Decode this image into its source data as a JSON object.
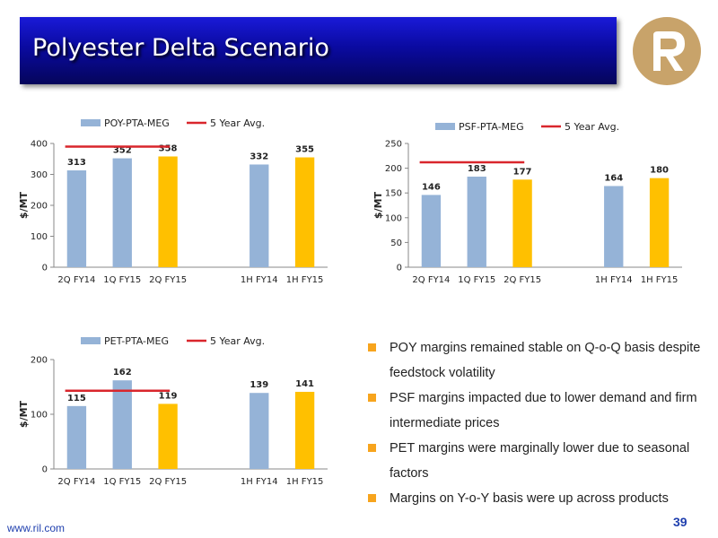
{
  "slide": {
    "title": "Polyester Delta Scenario",
    "footer_url": "www.ril.com",
    "page_number": "39"
  },
  "colors": {
    "bar_blue": "#95b3d7",
    "bar_yellow": "#ffc000",
    "avg_line": "#d9262c",
    "bullet": "#f7a41d",
    "title_bg": "#0a0aa0",
    "logo": "#c8a36a"
  },
  "bullets": [
    "POY margins remained stable on Q-o-Q basis despite feedstock volatility",
    "PSF margins impacted due to lower demand and firm intermediate prices",
    "PET margins were marginally lower due to seasonal factors",
    "Margins on Y-o-Y basis were up across products"
  ],
  "chart_data": [
    {
      "type": "bar",
      "categories": [
        "2Q FY14",
        "1Q FY15",
        "2Q FY15",
        "",
        "1H FY14",
        "1H FY15"
      ],
      "series": [
        {
          "name": "POY-PTA-MEG",
          "values": [
            313,
            352,
            358,
            null,
            332,
            355
          ]
        }
      ],
      "highlight_categories": [
        "2Q FY15",
        "1H FY15"
      ],
      "avg_line": {
        "name": "5 Year Avg.",
        "value": 390,
        "from": "2Q FY14",
        "to": "2Q FY15"
      },
      "ylabel": "$/MT",
      "ylim": [
        0,
        400
      ],
      "yticks": [
        0,
        100,
        200,
        300,
        400
      ],
      "legend": "top",
      "grid": false
    },
    {
      "type": "bar",
      "categories": [
        "2Q FY14",
        "1Q FY15",
        "2Q FY15",
        "",
        "1H FY14",
        "1H FY15"
      ],
      "series": [
        {
          "name": "PSF-PTA-MEG",
          "values": [
            146,
            183,
            177,
            null,
            164,
            180
          ]
        }
      ],
      "highlight_categories": [
        "2Q FY15",
        "1H FY15"
      ],
      "avg_line": {
        "name": "5 Year Avg.",
        "value": 212,
        "from": "2Q FY14",
        "to": "2Q FY15"
      },
      "ylabel": "$/MT",
      "ylim": [
        0,
        250
      ],
      "yticks": [
        0,
        50,
        100,
        150,
        200,
        250
      ],
      "legend": "top",
      "grid": false
    },
    {
      "type": "bar",
      "categories": [
        "2Q FY14",
        "1Q FY15",
        "2Q FY15",
        "",
        "1H FY14",
        "1H FY15"
      ],
      "series": [
        {
          "name": "PET-PTA-MEG",
          "values": [
            115,
            162,
            119,
            null,
            139,
            141
          ]
        }
      ],
      "highlight_categories": [
        "2Q FY15",
        "1H FY15"
      ],
      "avg_line": {
        "name": "5 Year Avg.",
        "value": 143,
        "from": "2Q FY14",
        "to": "2Q FY15"
      },
      "ylabel": "$/MT",
      "ylim": [
        0,
        200
      ],
      "yticks": [
        0,
        100,
        200
      ],
      "legend": "top",
      "grid": false
    }
  ]
}
